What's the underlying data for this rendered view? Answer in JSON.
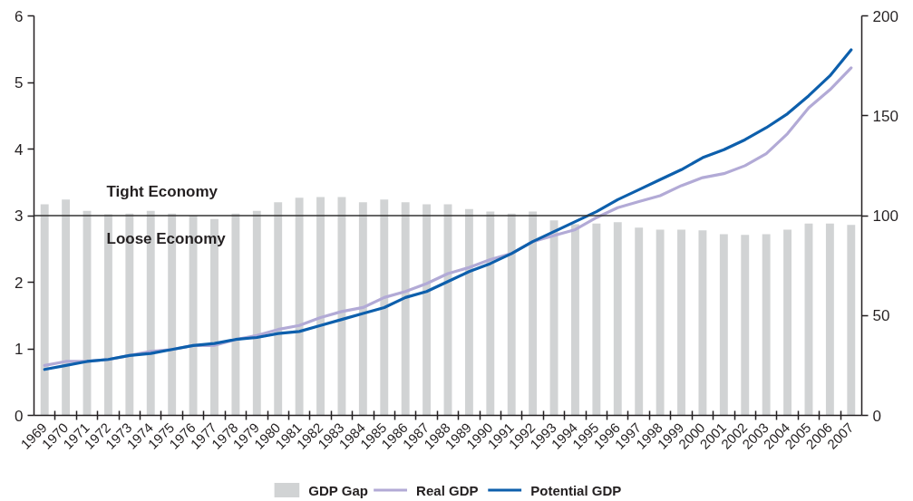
{
  "chart_data": {
    "type": "bar",
    "categories": [
      "1969",
      "1970",
      "1971",
      "1972",
      "1973",
      "1974",
      "1975",
      "1976",
      "1977",
      "1978",
      "1979",
      "1980",
      "1981",
      "1982",
      "1983",
      "1984",
      "1985",
      "1986",
      "1987",
      "1988",
      "1989",
      "1990",
      "1991",
      "1992",
      "1993",
      "1994",
      "1995",
      "1996",
      "1997",
      "1998",
      "1999",
      "2000",
      "2001",
      "2002",
      "2003",
      "2004",
      "2005",
      "2006",
      "2007"
    ],
    "series": [
      {
        "name": "GDP Gap",
        "color": "#d1d3d4",
        "values": [
          3.17,
          3.24,
          3.07,
          3.02,
          3.03,
          3.07,
          3.03,
          3.0,
          2.95,
          3.03,
          3.07,
          3.2,
          3.27,
          3.28,
          3.28,
          3.2,
          3.24,
          3.2,
          3.17,
          3.17,
          3.1,
          3.06,
          3.03,
          3.06,
          2.93,
          2.87,
          2.88,
          2.9,
          2.82,
          2.79,
          2.79,
          2.78,
          2.72,
          2.71,
          2.72,
          2.79,
          2.88,
          2.88,
          2.86
        ]
      },
      {
        "name": "Real GDP",
        "type": "line",
        "axis": "y2",
        "color": "#b2aad6",
        "values": [
          25,
          27,
          27,
          28,
          30,
          32,
          33,
          35,
          35,
          38,
          40,
          43,
          45,
          49,
          52,
          54,
          59,
          62,
          66,
          71,
          74,
          78,
          81,
          87,
          90,
          93,
          99,
          104,
          107,
          110,
          115,
          119,
          121,
          125,
          131,
          141,
          154,
          163,
          174
        ]
      },
      {
        "name": "Potential GDP",
        "type": "line",
        "axis": "y2",
        "color": "#0d5fac",
        "values": [
          23,
          25,
          27,
          28,
          30,
          31,
          33,
          35,
          36,
          38,
          39,
          41,
          42,
          45,
          48,
          51,
          54,
          59,
          62,
          67,
          72,
          76,
          81,
          87,
          92,
          97,
          102,
          108,
          113,
          118,
          123,
          129,
          133,
          138,
          144,
          151,
          160,
          170,
          183
        ]
      }
    ],
    "ylim": [
      0,
      6
    ],
    "yticks": [
      0,
      1,
      2,
      3,
      4,
      5,
      6
    ],
    "y2lim": [
      0,
      200
    ],
    "y2ticks": [
      0,
      50,
      100,
      150,
      200
    ],
    "ref_lines": [
      {
        "axis": "y",
        "value": 3,
        "color": "#333333"
      }
    ],
    "annotations": [
      "Tight Economy",
      "Loose Economy"
    ],
    "legend": "bottom"
  }
}
